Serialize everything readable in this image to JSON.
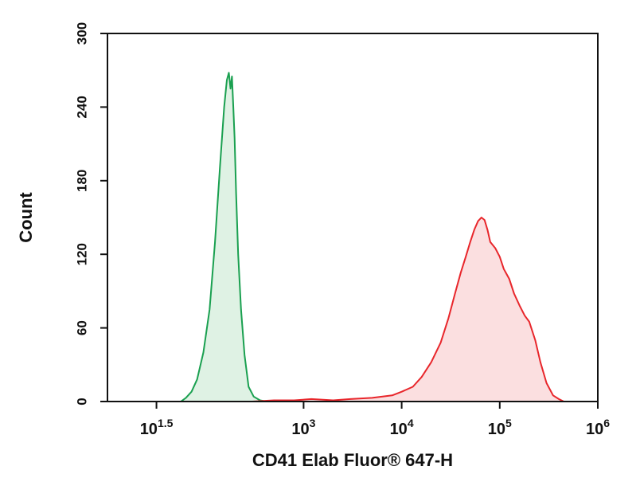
{
  "chart_data": {
    "type": "area",
    "title": "",
    "xlabel": "CD41 Elab Fluor® 647-H",
    "ylabel": "Count",
    "x_scale": "log",
    "xlim": [
      10,
      1000000
    ],
    "ylim": [
      0,
      300
    ],
    "grid": false,
    "legend": "none",
    "x_ticks": [
      {
        "value": 31.6,
        "base": "10",
        "exp": "1.5"
      },
      {
        "value": 1000,
        "base": "10",
        "exp": "3"
      },
      {
        "value": 10000,
        "base": "10",
        "exp": "4"
      },
      {
        "value": 100000,
        "base": "10",
        "exp": "5"
      },
      {
        "value": 1000000,
        "base": "10",
        "exp": "6"
      }
    ],
    "y_ticks": [
      "0",
      "60",
      "120",
      "180",
      "240",
      "300"
    ],
    "y_tick_values": [
      0,
      60,
      120,
      180,
      240,
      300
    ],
    "series": [
      {
        "color": "#1aa050",
        "fill": "#dff2e4",
        "x": [
          56,
          63,
          72,
          82,
          95,
          110,
          125,
          140,
          155,
          165,
          173,
          180,
          186,
          192,
          198,
          205,
          215,
          230,
          250,
          275,
          310,
          360,
          420
        ],
        "y": [
          0,
          3,
          8,
          18,
          40,
          75,
          130,
          190,
          240,
          262,
          268,
          255,
          265,
          240,
          215,
          170,
          120,
          75,
          38,
          12,
          4,
          1,
          0
        ]
      },
      {
        "color": "#e8262b",
        "fill": "#fbdfe0",
        "x": [
          300,
          500,
          800,
          1200,
          2000,
          3000,
          5000,
          8000,
          10000,
          13000,
          16000,
          20000,
          25000,
          30000,
          35000,
          40000,
          45000,
          50000,
          55000,
          60000,
          65000,
          70000,
          75000,
          80000,
          90000,
          100000,
          110000,
          125000,
          140000,
          160000,
          180000,
          200000,
          230000,
          260000,
          300000,
          350000,
          400000,
          450000
        ],
        "y": [
          0,
          1,
          1,
          2,
          1,
          2,
          3,
          5,
          8,
          12,
          20,
          32,
          48,
          68,
          88,
          105,
          118,
          130,
          140,
          147,
          150,
          148,
          140,
          130,
          125,
          118,
          108,
          100,
          88,
          78,
          70,
          65,
          50,
          32,
          15,
          5,
          2,
          0
        ]
      }
    ]
  }
}
